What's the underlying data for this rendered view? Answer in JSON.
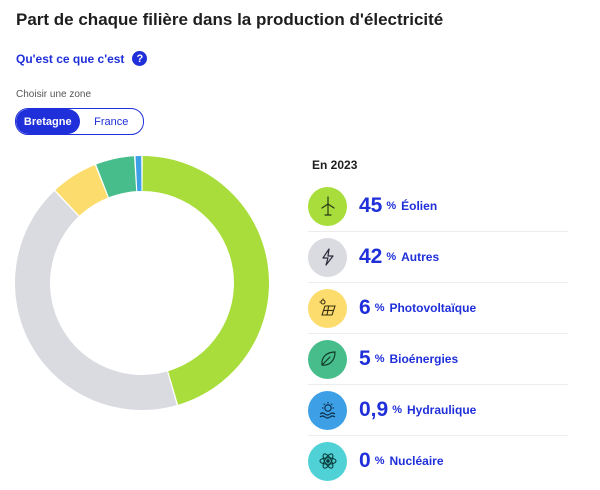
{
  "header": {
    "title": "Part de chaque filière dans la production d'électricité",
    "help_link": "Qu'est ce que c'est",
    "help_icon": "?"
  },
  "zone": {
    "label": "Choisir une zone",
    "options": [
      "Bretagne",
      "France"
    ],
    "selected": "Bretagne"
  },
  "chart_data": {
    "type": "pie",
    "year_label": "En 2023",
    "unit": "%",
    "slices": [
      {
        "label": "Éolien",
        "display": "45",
        "value": 45.0,
        "color": "#a8dd3b",
        "icon": "wind-turbine-icon"
      },
      {
        "label": "Autres",
        "display": "42",
        "value": 42.0,
        "color": "#d9dbe1",
        "icon": "lightning-icon"
      },
      {
        "label": "Photovoltaïque",
        "display": "6",
        "value": 6.0,
        "color": "#fcdc6c",
        "icon": "solar-panel-icon"
      },
      {
        "label": "Bioénergies",
        "display": "5",
        "value": 5.0,
        "color": "#46bd8a",
        "icon": "leaf-icon"
      },
      {
        "label": "Hydraulique",
        "display": "0,9",
        "value": 0.9,
        "color": "#3d9fe6",
        "icon": "water-wave-icon"
      },
      {
        "label": "Nucléaire",
        "display": "0",
        "value": 0,
        "color": "#4fd1d6",
        "icon": "atom-icon"
      }
    ]
  }
}
